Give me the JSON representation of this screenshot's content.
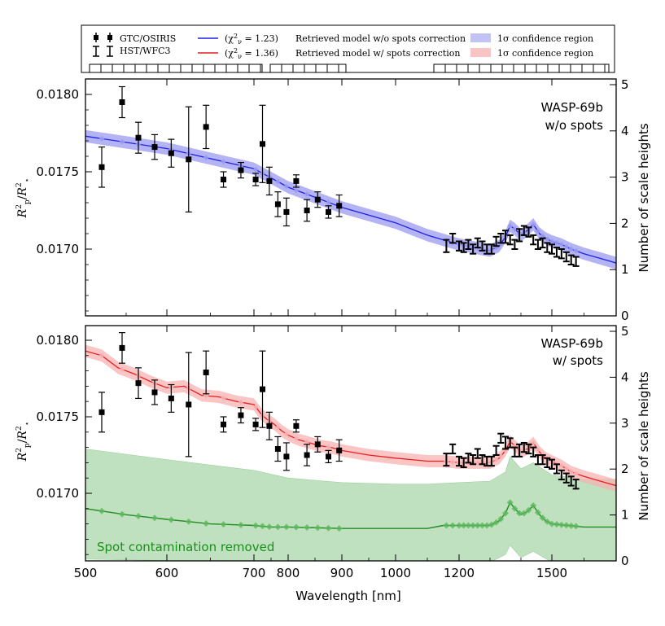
{
  "chart_data": [
    {
      "type": "line",
      "panel": "top",
      "title": "WASP-69b",
      "subtitle": "w/o spots",
      "xlabel": "Wavelength [nm]",
      "ylabel": "R_p^2 / R_*^2",
      "ylabel_right": "Number of scale heights",
      "yticks": [
        "0.0170",
        "0.0175",
        "0.0180"
      ],
      "yticks_right": [
        "0",
        "1",
        "2",
        "3",
        "4",
        "5"
      ],
      "ylim": [
        0.0166,
        0.0181
      ],
      "model": {
        "name": "(χ²ν = 1.23) Retrieved model w/o spots correction",
        "color": "#1f1fe6",
        "band_color": "#9b9bf0",
        "points": [
          [
            500,
            0.01773
          ],
          [
            600,
            0.01765
          ],
          [
            700,
            0.01752
          ],
          [
            800,
            0.0174
          ],
          [
            900,
            0.01727
          ],
          [
            1000,
            0.01717
          ],
          [
            1100,
            0.01709
          ],
          [
            1150,
            0.01706
          ],
          [
            1200,
            0.01703
          ],
          [
            1250,
            0.01701
          ],
          [
            1300,
            0.01699
          ],
          [
            1330,
            0.01702
          ],
          [
            1350,
            0.01708
          ],
          [
            1365,
            0.01715
          ],
          [
            1380,
            0.01713
          ],
          [
            1400,
            0.01709
          ],
          [
            1420,
            0.01712
          ],
          [
            1440,
            0.01716
          ],
          [
            1460,
            0.0171
          ],
          [
            1480,
            0.01707
          ],
          [
            1500,
            0.01705
          ],
          [
            1530,
            0.01703
          ],
          [
            1560,
            0.017
          ],
          [
            1600,
            0.01697
          ],
          [
            1650,
            0.01694
          ],
          [
            1700,
            0.01691
          ]
        ],
        "band_halfwidth": 4e-05
      },
      "series": [
        {
          "name": "GTC/OSIRIS",
          "color": "#000000",
          "x": [
            520,
            545,
            565,
            585,
            605,
            625,
            645,
            665,
            685,
            705,
            725,
            745,
            770,
            795,
            815,
            835,
            855,
            875,
            895
          ],
          "y": [
            0.01753,
            0.01795,
            0.01772,
            0.01766,
            0.01762,
            0.01758,
            0.01779,
            0.01745,
            0.01751,
            0.01745,
            0.01768,
            0.01744,
            0.01729,
            0.01724,
            0.01744,
            0.01725,
            0.01732,
            0.01724,
            0.01728
          ],
          "err": [
            0.00013,
            0.0001,
            0.0001,
            8e-05,
            9e-05,
            0.00034,
            0.00014,
            5e-05,
            5e-05,
            4e-05,
            0.00025,
            9e-05,
            8e-05,
            9e-05,
            4e-05,
            7e-05,
            5e-05,
            4e-05,
            7e-05
          ]
        },
        {
          "name": "HST/WFC3",
          "color": "#000000",
          "x": [
            1160,
            1180,
            1200,
            1215,
            1230,
            1245,
            1260,
            1275,
            1290,
            1305,
            1320,
            1335,
            1350,
            1365,
            1380,
            1395,
            1410,
            1425,
            1440,
            1455,
            1470,
            1485,
            1500,
            1515,
            1530,
            1545,
            1560,
            1575
          ],
          "y": [
            0.01702,
            0.01707,
            0.01702,
            0.01701,
            0.01703,
            0.017,
            0.01704,
            0.01702,
            0.017,
            0.017,
            0.01705,
            0.01707,
            0.01708,
            0.01706,
            0.01703,
            0.01709,
            0.01712,
            0.01711,
            0.01706,
            0.01703,
            0.01704,
            0.01701,
            0.017,
            0.01698,
            0.01697,
            0.01695,
            0.01693,
            0.01692
          ],
          "err": [
            4e-05,
            3e-05,
            3e-05,
            3e-05,
            3e-05,
            3e-05,
            3e-05,
            3e-05,
            3e-05,
            3e-05,
            3e-05,
            3e-05,
            4e-05,
            3e-05,
            3e-05,
            4e-05,
            3e-05,
            3e-05,
            3e-05,
            3e-05,
            3e-05,
            3e-05,
            3e-05,
            3e-05,
            3e-05,
            3e-05,
            3e-05,
            3e-05
          ]
        }
      ]
    },
    {
      "type": "line",
      "panel": "bottom",
      "title": "WASP-69b",
      "subtitle": "w/ spots",
      "xlabel": "Wavelength [nm]",
      "ylabel": "R_p^2 / R_*^2",
      "ylabel_right": "Number of scale heights",
      "yticks": [
        "0.0170",
        "0.0175",
        "0.0180"
      ],
      "yticks_right": [
        "0",
        "1",
        "2",
        "3",
        "4",
        "5"
      ],
      "ylim": [
        0.01655,
        0.01808
      ],
      "xticks": [
        "500",
        "600",
        "700",
        "800",
        "900",
        "1000",
        "1200",
        "1500"
      ],
      "annotation": "Spot contamination removed",
      "model": {
        "name": "(χ²ν = 1.36) Retrieved model w/ spots correction",
        "color": "#e81f1f",
        "band_color": "#f7b1b1",
        "points": [
          [
            500,
            0.01793
          ],
          [
            520,
            0.0179
          ],
          [
            540,
            0.01782
          ],
          [
            560,
            0.01778
          ],
          [
            580,
            0.01773
          ],
          [
            600,
            0.01769
          ],
          [
            620,
            0.0177
          ],
          [
            640,
            0.01764
          ],
          [
            660,
            0.01763
          ],
          [
            680,
            0.0176
          ],
          [
            700,
            0.01758
          ],
          [
            720,
            0.01752
          ],
          [
            740,
            0.01748
          ],
          [
            760,
            0.01745
          ],
          [
            780,
            0.01741
          ],
          [
            800,
            0.01738
          ],
          [
            820,
            0.01735
          ],
          [
            840,
            0.01733
          ],
          [
            860,
            0.01731
          ],
          [
            880,
            0.0173
          ],
          [
            900,
            0.01728
          ],
          [
            950,
            0.01725
          ],
          [
            1000,
            0.01723
          ],
          [
            1050,
            0.01722
          ],
          [
            1100,
            0.01721
          ],
          [
            1150,
            0.01721
          ],
          [
            1200,
            0.0172
          ],
          [
            1250,
            0.0172
          ],
          [
            1300,
            0.0172
          ],
          [
            1330,
            0.01723
          ],
          [
            1350,
            0.01728
          ],
          [
            1365,
            0.01734
          ],
          [
            1380,
            0.01731
          ],
          [
            1400,
            0.01727
          ],
          [
            1420,
            0.01729
          ],
          [
            1440,
            0.01733
          ],
          [
            1460,
            0.01727
          ],
          [
            1480,
            0.01723
          ],
          [
            1500,
            0.01721
          ],
          [
            1530,
            0.01718
          ],
          [
            1560,
            0.01714
          ],
          [
            1600,
            0.01711
          ],
          [
            1650,
            0.01708
          ],
          [
            1700,
            0.01705
          ]
        ],
        "band_halfwidth": 4e-05
      },
      "spot_model": {
        "name": "Spot contamination removed",
        "color": "#228b22",
        "band_color": "#b4dcb4",
        "points": [
          [
            500,
            0.0169
          ],
          [
            550,
            0.01686
          ],
          [
            600,
            0.01683
          ],
          [
            650,
            0.0168
          ],
          [
            700,
            0.01679
          ],
          [
            750,
            0.01678
          ],
          [
            800,
            0.01678
          ],
          [
            900,
            0.01677
          ],
          [
            1000,
            0.01677
          ],
          [
            1100,
            0.01677
          ],
          [
            1150,
            0.01679
          ],
          [
            1200,
            0.01679
          ],
          [
            1250,
            0.01679
          ],
          [
            1300,
            0.01679
          ],
          [
            1330,
            0.01682
          ],
          [
            1350,
            0.01687
          ],
          [
            1365,
            0.01694
          ],
          [
            1380,
            0.0169
          ],
          [
            1400,
            0.01686
          ],
          [
            1420,
            0.01688
          ],
          [
            1440,
            0.01692
          ],
          [
            1460,
            0.01686
          ],
          [
            1480,
            0.01682
          ],
          [
            1500,
            0.0168
          ],
          [
            1550,
            0.01679
          ],
          [
            1600,
            0.01678
          ],
          [
            1700,
            0.01678
          ]
        ],
        "band_upper": [
          [
            500,
            0.01729
          ],
          [
            600,
            0.01722
          ],
          [
            700,
            0.01715
          ],
          [
            800,
            0.0171
          ],
          [
            900,
            0.01707
          ],
          [
            1000,
            0.01706
          ],
          [
            1100,
            0.01706
          ],
          [
            1200,
            0.01707
          ],
          [
            1300,
            0.01708
          ],
          [
            1350,
            0.01714
          ],
          [
            1365,
            0.01724
          ],
          [
            1400,
            0.01716
          ],
          [
            1440,
            0.0172
          ],
          [
            1500,
            0.01712
          ],
          [
            1600,
            0.01709
          ],
          [
            1700,
            0.01709
          ]
        ],
        "band_lower": [
          [
            500,
            0.01657
          ],
          [
            600,
            0.01656
          ],
          [
            700,
            0.01656
          ],
          [
            800,
            0.01655
          ],
          [
            900,
            0.01655
          ],
          [
            1000,
            0.01655
          ],
          [
            1100,
            0.01655
          ],
          [
            1200,
            0.01655
          ],
          [
            1300,
            0.01655
          ],
          [
            1350,
            0.0166
          ],
          [
            1365,
            0.01666
          ],
          [
            1400,
            0.01658
          ],
          [
            1440,
            0.01662
          ],
          [
            1500,
            0.01655
          ],
          [
            1600,
            0.01655
          ],
          [
            1700,
            0.01655
          ]
        ],
        "markers_x": [
          520,
          545,
          565,
          585,
          605,
          625,
          645,
          665,
          685,
          705,
          725,
          745,
          770,
          795,
          815,
          835,
          855,
          875,
          895,
          1160,
          1180,
          1200,
          1215,
          1230,
          1245,
          1260,
          1275,
          1290,
          1305,
          1320,
          1335,
          1350,
          1365,
          1380,
          1395,
          1410,
          1425,
          1440,
          1455,
          1470,
          1485,
          1500,
          1515,
          1530,
          1545,
          1560,
          1575
        ]
      },
      "series": [
        {
          "name": "GTC/OSIRIS",
          "color": "#000000",
          "x": [
            520,
            545,
            565,
            585,
            605,
            625,
            645,
            665,
            685,
            705,
            725,
            745,
            770,
            795,
            815,
            835,
            855,
            875,
            895
          ],
          "y": [
            0.01753,
            0.01795,
            0.01772,
            0.01766,
            0.01762,
            0.01758,
            0.01779,
            0.01745,
            0.01751,
            0.01745,
            0.01768,
            0.01744,
            0.01729,
            0.01724,
            0.01744,
            0.01725,
            0.01732,
            0.01724,
            0.01728
          ],
          "err": [
            0.00013,
            0.0001,
            0.0001,
            8e-05,
            9e-05,
            0.00034,
            0.00014,
            5e-05,
            5e-05,
            4e-05,
            0.00025,
            9e-05,
            8e-05,
            9e-05,
            4e-05,
            7e-05,
            5e-05,
            4e-05,
            7e-05
          ]
        },
        {
          "name": "HST/WFC3",
          "color": "#000000",
          "x": [
            1160,
            1180,
            1200,
            1215,
            1230,
            1245,
            1260,
            1275,
            1290,
            1305,
            1320,
            1335,
            1350,
            1365,
            1380,
            1395,
            1410,
            1425,
            1440,
            1455,
            1470,
            1485,
            1500,
            1515,
            1530,
            1545,
            1560,
            1575
          ],
          "y": [
            0.01722,
            0.01729,
            0.01721,
            0.0172,
            0.01723,
            0.01722,
            0.01726,
            0.01722,
            0.01721,
            0.01721,
            0.01728,
            0.01736,
            0.01733,
            0.01733,
            0.01727,
            0.01728,
            0.0173,
            0.01729,
            0.01727,
            0.01722,
            0.01722,
            0.0172,
            0.01719,
            0.01716,
            0.01712,
            0.0171,
            0.01708,
            0.01706
          ],
          "err": [
            4e-05,
            3e-05,
            3e-05,
            3e-05,
            3e-05,
            3e-05,
            3e-05,
            3e-05,
            3e-05,
            3e-05,
            3e-05,
            3e-05,
            4e-05,
            3e-05,
            3e-05,
            4e-05,
            3e-05,
            3e-05,
            3e-05,
            3e-05,
            3e-05,
            3e-05,
            3e-05,
            3e-05,
            3e-05,
            3e-05,
            3e-05,
            3e-05
          ]
        }
      ]
    }
  ],
  "legend": {
    "gtc": "GTC/OSIRIS",
    "hst": "HST/WFC3",
    "model_blue": "Retrieved model w/o spots correction",
    "chi_blue": "= 1.23)",
    "model_red": "Retrieved model w/ spots correction",
    "chi_red": "= 1.36)",
    "band_blue": "confidence region",
    "band_red": "confidence region",
    "sigma_prefix": "1σ"
  },
  "colors": {
    "blue": "#1f1fe6",
    "blue_band": "#9b9bf0",
    "red": "#e81f1f",
    "red_band": "#f7b1b1",
    "green": "#228b22",
    "green_band": "#b4dcb4",
    "annotation": "#1a8f1a"
  }
}
